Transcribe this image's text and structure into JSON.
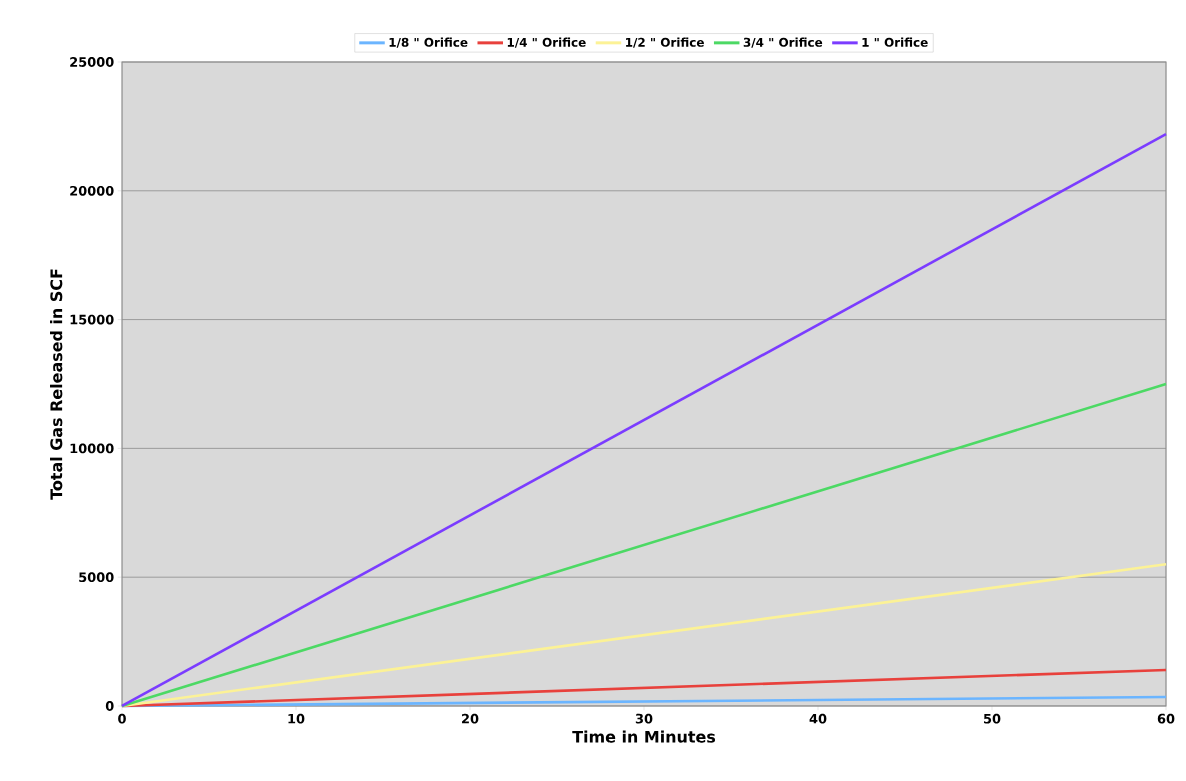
{
  "chart_data": {
    "type": "line",
    "xlabel": "Time in Minutes",
    "ylabel": "Total Gas Released in SCF",
    "xlim": [
      0,
      60
    ],
    "xticks": [
      0,
      10,
      20,
      30,
      40,
      50,
      60
    ],
    "ylim": [
      0,
      25000
    ],
    "yticks": [
      0,
      5000,
      10000,
      15000,
      20000,
      25000
    ],
    "grid": "y",
    "legend": "top",
    "marker": "none",
    "line_style": "solid",
    "x": [
      0,
      60
    ],
    "series": [
      {
        "name": "1/8 \" Orifice",
        "color": "#6bb5ff",
        "values": [
          0,
          350
        ]
      },
      {
        "name": "1/4 \" Orifice",
        "color": "#e8413c",
        "values": [
          0,
          1400
        ]
      },
      {
        "name": "1/2 \" Orifice",
        "color": "#fcf296",
        "values": [
          0,
          5500
        ]
      },
      {
        "name": "3/4 \" Orifice",
        "color": "#4cd964",
        "values": [
          0,
          12500
        ]
      },
      {
        "name": "1 \" Orifice",
        "color": "#7b3cff",
        "values": [
          0,
          22200
        ]
      }
    ]
  }
}
